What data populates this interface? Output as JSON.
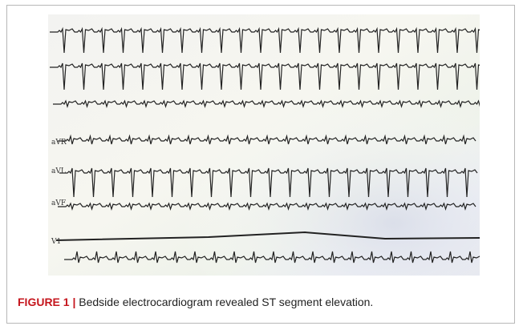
{
  "figure": {
    "leads": [
      "aVR",
      "aVL",
      "aVF",
      "V1"
    ],
    "caption": {
      "label": "FIGURE 1 |",
      "text": "Bedside electrocardiogram revealed ST segment elevation."
    }
  }
}
